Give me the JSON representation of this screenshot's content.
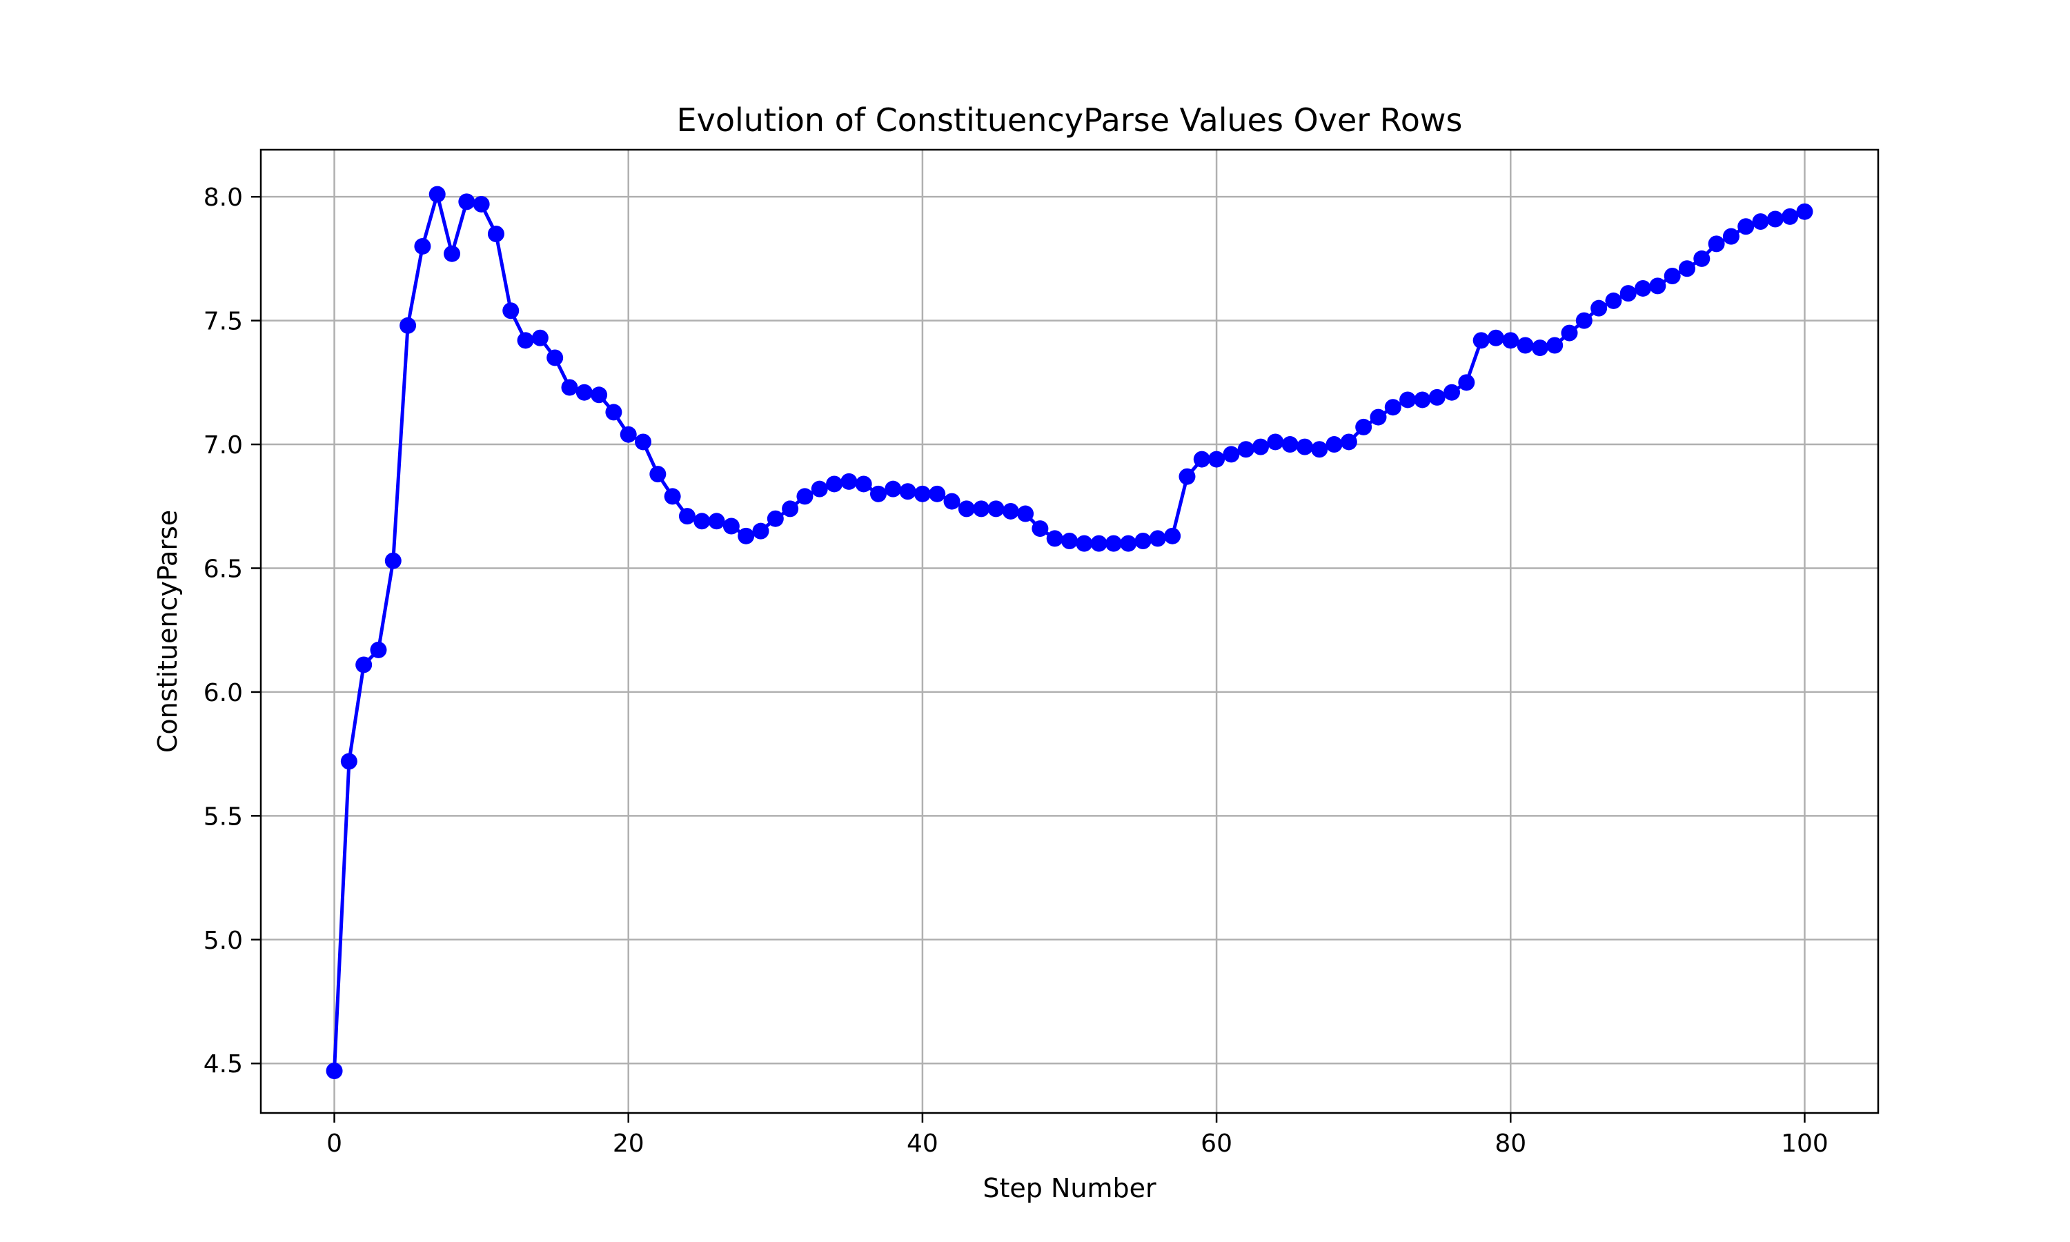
{
  "chart_data": {
    "type": "line",
    "title": "Evolution of ConstituencyParse Values Over Rows",
    "xlabel": "Step Number",
    "ylabel": "ConstituencyParse",
    "xlim": [
      -5,
      105
    ],
    "ylim": [
      4.3,
      8.19
    ],
    "xticks": [
      0,
      20,
      40,
      60,
      80,
      100
    ],
    "yticks": [
      4.5,
      5.0,
      5.5,
      6.0,
      6.5,
      7.0,
      7.5,
      8.0
    ],
    "xtick_labels": [
      "0",
      "20",
      "40",
      "60",
      "80",
      "100"
    ],
    "ytick_labels": [
      "4.5",
      "5.0",
      "5.5",
      "6.0",
      "6.5",
      "7.0",
      "7.5",
      "8.0"
    ],
    "grid": true,
    "line_color": "#0000ff",
    "marker": "circle",
    "series": [
      {
        "x": [
          0,
          1,
          2,
          3,
          4,
          5,
          6,
          7,
          8,
          9,
          10,
          11,
          12,
          13,
          14,
          15,
          16,
          17,
          18,
          19,
          20,
          21,
          22,
          23,
          24,
          25,
          26,
          27,
          28,
          29,
          30,
          31,
          32,
          33,
          34,
          35,
          36,
          37,
          38,
          39,
          40,
          41,
          42,
          43,
          44,
          45,
          46,
          47,
          48,
          49,
          50,
          51,
          52,
          53,
          54,
          55,
          56,
          57,
          58,
          59,
          60,
          61,
          62,
          63,
          64,
          65,
          66,
          67,
          68,
          69,
          70,
          71,
          72,
          73,
          74,
          75,
          76,
          77,
          78,
          79,
          80,
          81,
          82,
          83,
          84,
          85,
          86,
          87,
          88,
          89,
          90,
          91,
          92,
          93,
          94,
          95,
          96,
          97,
          98,
          99,
          100
        ],
        "y": [
          4.47,
          5.72,
          6.11,
          6.17,
          6.53,
          7.48,
          7.8,
          8.01,
          7.77,
          7.98,
          7.97,
          7.85,
          7.54,
          7.42,
          7.43,
          7.35,
          7.23,
          7.21,
          7.2,
          7.13,
          7.04,
          7.01,
          6.88,
          6.79,
          6.71,
          6.69,
          6.69,
          6.67,
          6.63,
          6.65,
          6.7,
          6.74,
          6.79,
          6.82,
          6.84,
          6.85,
          6.84,
          6.8,
          6.82,
          6.81,
          6.8,
          6.8,
          6.77,
          6.74,
          6.74,
          6.74,
          6.73,
          6.72,
          6.66,
          6.62,
          6.61,
          6.6,
          6.6,
          6.6,
          6.6,
          6.61,
          6.62,
          6.63,
          6.87,
          6.94,
          6.94,
          6.96,
          6.98,
          6.99,
          7.01,
          7.0,
          6.99,
          6.98,
          7.0,
          7.01,
          7.07,
          7.11,
          7.15,
          7.18,
          7.18,
          7.19,
          7.21,
          7.25,
          7.42,
          7.43,
          7.42,
          7.4,
          7.39,
          7.4,
          7.45,
          7.5,
          7.55,
          7.58,
          7.61,
          7.63,
          7.64,
          7.68,
          7.71,
          7.75,
          7.81,
          7.84,
          7.88,
          7.9,
          7.91,
          7.92,
          7.94
        ]
      }
    ]
  }
}
